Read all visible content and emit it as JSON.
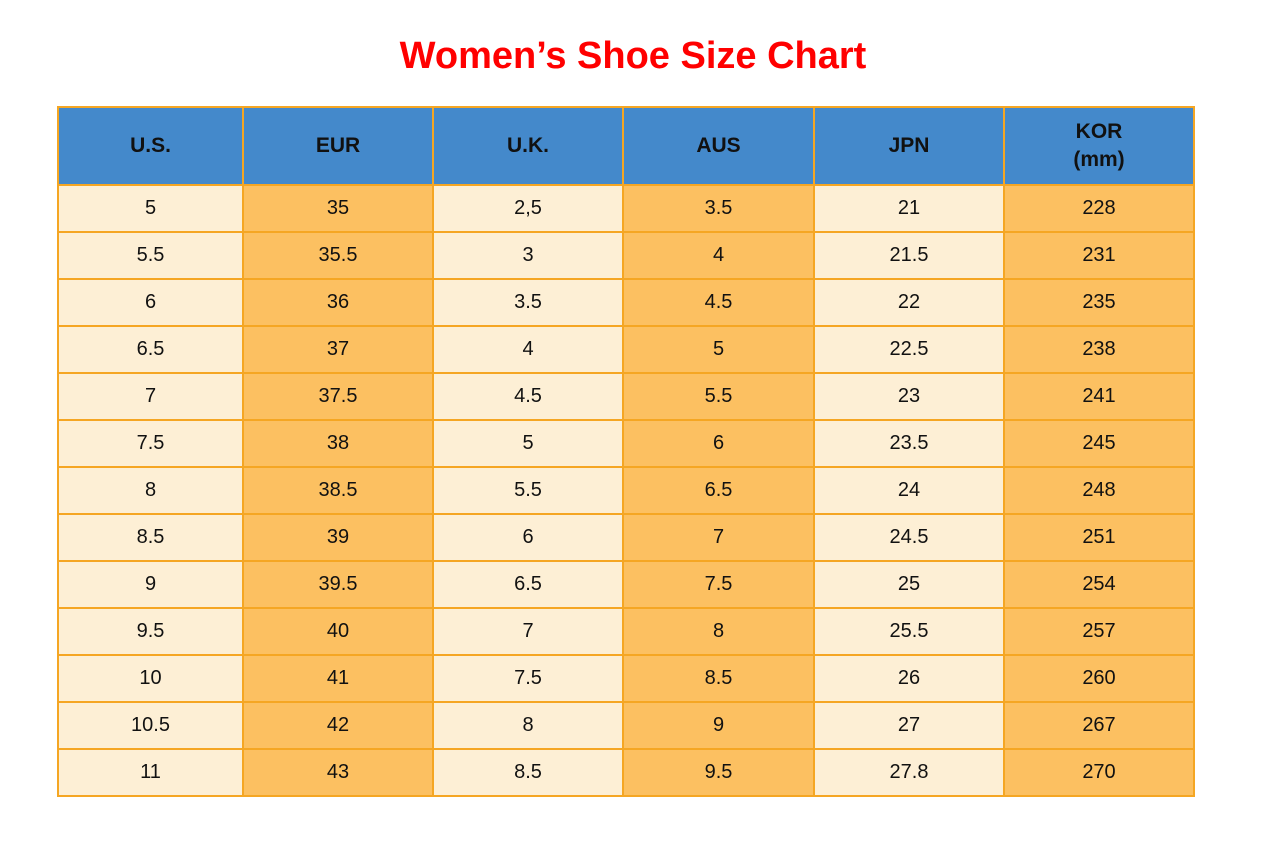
{
  "page": {
    "title": "Women’s Shoe Size Chart"
  },
  "colors": {
    "title_red": "#FF0000",
    "header_blue": "#4489CB",
    "cell_cream": "#FDEFD5",
    "cell_orange": "#FCC061",
    "border_orange": "#F5A623",
    "text": "#111111"
  },
  "chart_data": {
    "type": "table",
    "title": "Women’s Shoe Size Chart",
    "columns": [
      {
        "key": "us",
        "label": "U.S.",
        "sublabel": ""
      },
      {
        "key": "eur",
        "label": "EUR",
        "sublabel": ""
      },
      {
        "key": "uk",
        "label": "U.K.",
        "sublabel": ""
      },
      {
        "key": "aus",
        "label": "AUS",
        "sublabel": ""
      },
      {
        "key": "jpn",
        "label": "JPN",
        "sublabel": ""
      },
      {
        "key": "kor",
        "label": "KOR",
        "sublabel": "(mm)"
      }
    ],
    "column_fill_pattern": [
      "cream",
      "orange",
      "cream",
      "orange",
      "cream",
      "orange"
    ],
    "header_fill": "blue",
    "grid": true,
    "rows": [
      [
        "5",
        "35",
        "2,5",
        "3.5",
        "21",
        "228"
      ],
      [
        "5.5",
        "35.5",
        "3",
        "4",
        "21.5",
        "231"
      ],
      [
        "6",
        "36",
        "3.5",
        "4.5",
        "22",
        "235"
      ],
      [
        "6.5",
        "37",
        "4",
        "5",
        "22.5",
        "238"
      ],
      [
        "7",
        "37.5",
        "4.5",
        "5.5",
        "23",
        "241"
      ],
      [
        "7.5",
        "38",
        "5",
        "6",
        "23.5",
        "245"
      ],
      [
        "8",
        "38.5",
        "5.5",
        "6.5",
        "24",
        "248"
      ],
      [
        "8.5",
        "39",
        "6",
        "7",
        "24.5",
        "251"
      ],
      [
        "9",
        "39.5",
        "6.5",
        "7.5",
        "25",
        "254"
      ],
      [
        "9.5",
        "40",
        "7",
        "8",
        "25.5",
        "257"
      ],
      [
        "10",
        "41",
        "7.5",
        "8.5",
        "26",
        "260"
      ],
      [
        "10.5",
        "42",
        "8",
        "9",
        "27",
        "267"
      ],
      [
        "11",
        "43",
        "8.5",
        "9.5",
        "27.8",
        "270"
      ]
    ]
  }
}
